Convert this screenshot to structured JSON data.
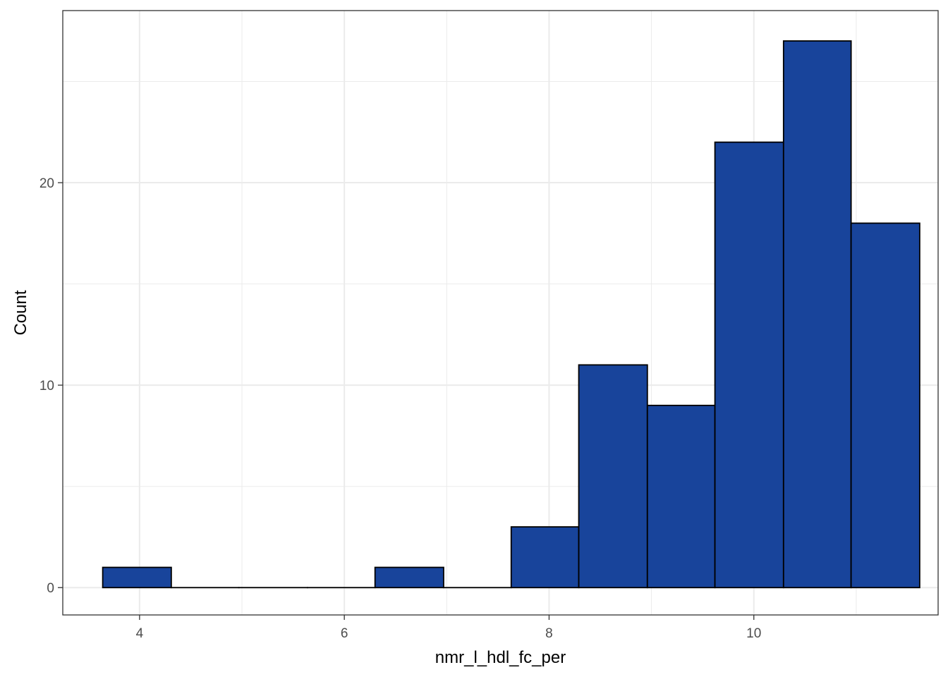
{
  "chart_data": {
    "type": "bar",
    "subtype": "histogram",
    "xlabel": "nmr_l_hdl_fc_per",
    "ylabel": "Count",
    "xlim": [
      3.25,
      11.8
    ],
    "ylim": [
      -1.35,
      28.5
    ],
    "x_ticks": [
      4,
      6,
      8,
      10
    ],
    "y_ticks": [
      0,
      10,
      20
    ],
    "grid": true,
    "bins": [
      {
        "start": 3.64,
        "end": 4.31,
        "count": 1
      },
      {
        "start": 4.31,
        "end": 4.97,
        "count": 0
      },
      {
        "start": 4.97,
        "end": 5.64,
        "count": 0
      },
      {
        "start": 5.64,
        "end": 6.3,
        "count": 0
      },
      {
        "start": 6.3,
        "end": 6.97,
        "count": 1
      },
      {
        "start": 6.97,
        "end": 7.63,
        "count": 0
      },
      {
        "start": 7.63,
        "end": 8.29,
        "count": 3
      },
      {
        "start": 8.29,
        "end": 8.96,
        "count": 11
      },
      {
        "start": 8.96,
        "end": 9.62,
        "count": 9
      },
      {
        "start": 9.62,
        "end": 10.29,
        "count": 22
      },
      {
        "start": 10.29,
        "end": 10.95,
        "count": 27
      },
      {
        "start": 10.95,
        "end": 11.62,
        "count": 18
      }
    ],
    "fill_color": "#18449b",
    "edge_color": "#000000",
    "grid_color": "#ebebeb",
    "panel_border_color": "#333333"
  }
}
